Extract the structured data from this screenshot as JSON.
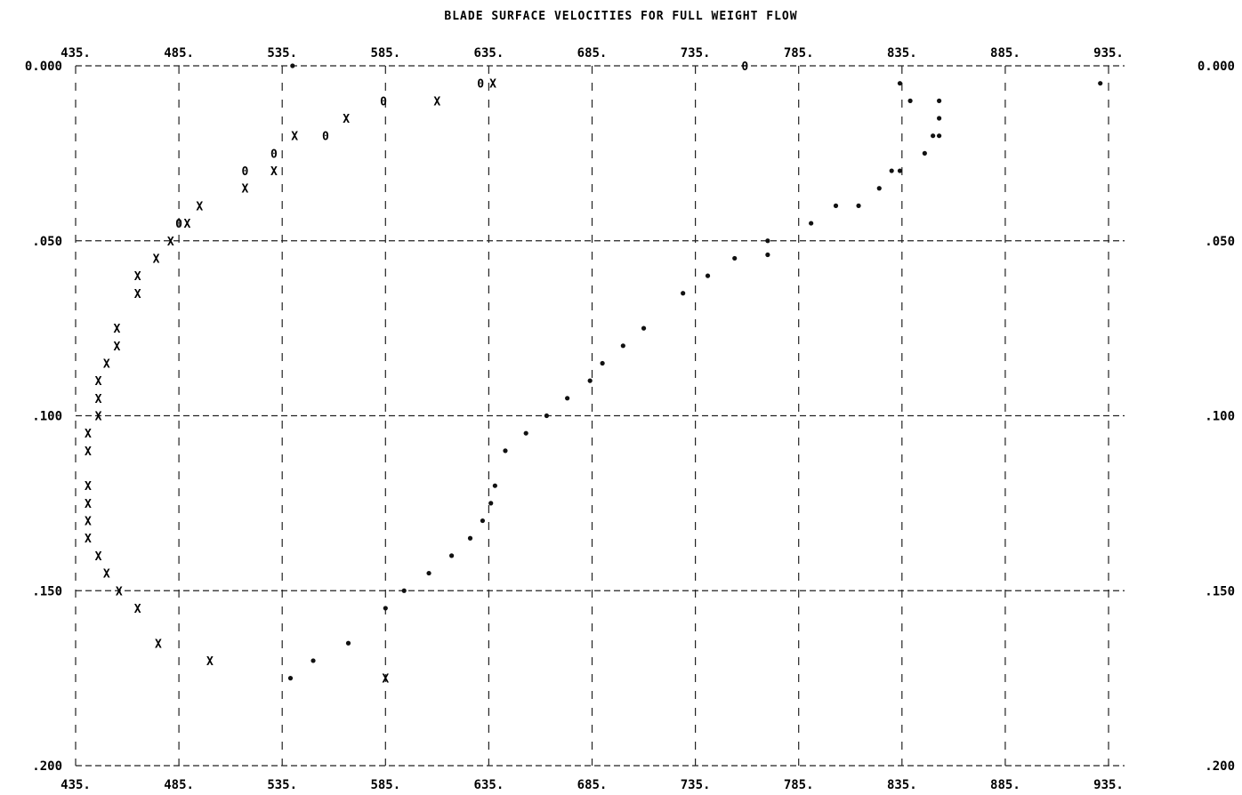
{
  "chart_data": {
    "type": "scatter",
    "title": "BLADE SURFACE VELOCITIES FOR FULL WEIGHT FLOW",
    "xlim": [
      435,
      935
    ],
    "ylim": [
      0.0,
      0.2
    ],
    "y_inverted": true,
    "grid": true,
    "x_tick_labels": [
      "435.",
      "485.",
      "535.",
      "585.",
      "635.",
      "685.",
      "735.",
      "785.",
      "835.",
      "885.",
      "935."
    ],
    "y_tick_labels_left": [
      "0.000",
      ".050",
      ".100",
      ".150",
      ".200"
    ],
    "y_tick_labels_right": [
      "0.000",
      ".050",
      ".100",
      ".150",
      ".200"
    ],
    "series": [
      {
        "symbol": "X",
        "points": [
          [
            637,
            0.005
          ],
          [
            610,
            0.01
          ],
          [
            566,
            0.015
          ],
          [
            541,
            0.02
          ],
          [
            531,
            0.03
          ],
          [
            495,
            0.04
          ],
          [
            517,
            0.035
          ],
          [
            489,
            0.045
          ],
          [
            481,
            0.05
          ],
          [
            474,
            0.055
          ],
          [
            465,
            0.06
          ],
          [
            465,
            0.065
          ],
          [
            455,
            0.075
          ],
          [
            455,
            0.08
          ],
          [
            450,
            0.085
          ],
          [
            446,
            0.09
          ],
          [
            446,
            0.095
          ],
          [
            446,
            0.1
          ],
          [
            441,
            0.105
          ],
          [
            441,
            0.11
          ],
          [
            441,
            0.12
          ],
          [
            441,
            0.125
          ],
          [
            441,
            0.13
          ],
          [
            441,
            0.135
          ],
          [
            446,
            0.14
          ],
          [
            450,
            0.145
          ],
          [
            456,
            0.15
          ],
          [
            465,
            0.155
          ],
          [
            475,
            0.165
          ],
          [
            500,
            0.17
          ],
          [
            585,
            0.175
          ]
        ]
      },
      {
        "symbol": "0",
        "points": [
          [
            631,
            0.005
          ],
          [
            584,
            0.01
          ],
          [
            556,
            0.02
          ],
          [
            531,
            0.025
          ],
          [
            517,
            0.03
          ],
          [
            485,
            0.045
          ],
          [
            759,
            0.0
          ]
        ]
      },
      {
        "symbol": "*",
        "points": [
          [
            540,
            0.0
          ],
          [
            834,
            0.005
          ],
          [
            839,
            0.01
          ],
          [
            931,
            0.005
          ],
          [
            853,
            0.01
          ],
          [
            853,
            0.015
          ],
          [
            850,
            0.02
          ],
          [
            853,
            0.02
          ],
          [
            846,
            0.025
          ],
          [
            830,
            0.03
          ],
          [
            834,
            0.03
          ],
          [
            824,
            0.035
          ],
          [
            814,
            0.04
          ],
          [
            803,
            0.04
          ],
          [
            791,
            0.045
          ],
          [
            770,
            0.05
          ],
          [
            770,
            0.054
          ],
          [
            754,
            0.055
          ],
          [
            741,
            0.06
          ],
          [
            729,
            0.065
          ],
          [
            710,
            0.075
          ],
          [
            700,
            0.08
          ],
          [
            690,
            0.085
          ],
          [
            684,
            0.09
          ],
          [
            673,
            0.095
          ],
          [
            663,
            0.1
          ],
          [
            653,
            0.105
          ],
          [
            643,
            0.11
          ],
          [
            638,
            0.12
          ],
          [
            636,
            0.125
          ],
          [
            632,
            0.13
          ],
          [
            626,
            0.135
          ],
          [
            617,
            0.14
          ],
          [
            606,
            0.145
          ],
          [
            594,
            0.15
          ],
          [
            585,
            0.155
          ],
          [
            567,
            0.165
          ],
          [
            550,
            0.17
          ],
          [
            539,
            0.175
          ]
        ]
      }
    ]
  }
}
